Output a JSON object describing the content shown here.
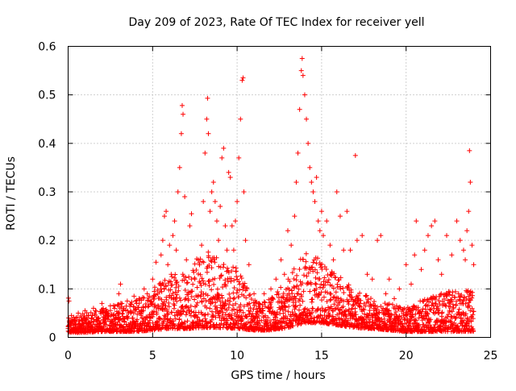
{
  "chart_data": {
    "type": "scatter",
    "title": "Day 209 of 2023, Rate Of TEC Index for receiver yell",
    "xlabel": "GPS time / hours",
    "ylabel": "ROTI / TECUs",
    "xlim": [
      0,
      25
    ],
    "ylim": [
      0,
      0.6
    ],
    "x_ticks": [
      "0",
      "5",
      "10",
      "15",
      "20",
      "25"
    ],
    "y_ticks": [
      "0",
      "0.1",
      "0.2",
      "0.3",
      "0.4",
      "0.5",
      "0.6"
    ],
    "grid": true,
    "marker": "plus",
    "color": "#ff0000",
    "series": [
      {
        "values": [
          [
            0.0,
            0.018
          ],
          [
            0.02,
            0.081
          ],
          [
            0.05,
            0.075
          ],
          [
            0.1,
            0.03
          ],
          [
            0.2,
            0.045
          ],
          [
            0.3,
            0.025
          ],
          [
            0.45,
            0.04
          ],
          [
            0.6,
            0.05
          ],
          [
            0.8,
            0.035
          ],
          [
            1.0,
            0.055
          ],
          [
            1.2,
            0.045
          ],
          [
            1.5,
            0.06
          ],
          [
            1.8,
            0.04
          ],
          [
            2.0,
            0.07
          ],
          [
            2.2,
            0.05
          ],
          [
            2.5,
            0.065
          ],
          [
            2.8,
            0.045
          ],
          [
            3.0,
            0.09
          ],
          [
            3.1,
            0.11
          ],
          [
            3.3,
            0.06
          ],
          [
            3.5,
            0.075
          ],
          [
            3.7,
            0.05
          ],
          [
            3.9,
            0.085
          ],
          [
            4.2,
            0.08
          ],
          [
            4.5,
            0.1
          ],
          [
            4.8,
            0.085
          ],
          [
            5.0,
            0.12
          ],
          [
            5.1,
            0.095
          ],
          [
            5.2,
            0.155
          ],
          [
            5.3,
            0.09
          ],
          [
            5.5,
            0.17
          ],
          [
            5.6,
            0.2
          ],
          [
            5.7,
            0.25
          ],
          [
            5.8,
            0.26
          ],
          [
            5.9,
            0.15
          ],
          [
            6.0,
            0.19
          ],
          [
            6.1,
            0.13
          ],
          [
            6.2,
            0.21
          ],
          [
            6.3,
            0.24
          ],
          [
            6.4,
            0.18
          ],
          [
            6.5,
            0.3
          ],
          [
            6.6,
            0.35
          ],
          [
            6.7,
            0.42
          ],
          [
            6.75,
            0.478
          ],
          [
            6.8,
            0.46
          ],
          [
            6.9,
            0.29
          ],
          [
            7.0,
            0.16
          ],
          [
            7.2,
            0.23
          ],
          [
            7.3,
            0.255
          ],
          [
            7.5,
            0.12
          ],
          [
            7.7,
            0.16
          ],
          [
            7.9,
            0.19
          ],
          [
            8.0,
            0.28
          ],
          [
            8.1,
            0.38
          ],
          [
            8.2,
            0.45
          ],
          [
            8.25,
            0.493
          ],
          [
            8.3,
            0.42
          ],
          [
            8.4,
            0.26
          ],
          [
            8.5,
            0.3
          ],
          [
            8.6,
            0.32
          ],
          [
            8.7,
            0.28
          ],
          [
            8.8,
            0.24
          ],
          [
            8.9,
            0.2
          ],
          [
            9.0,
            0.27
          ],
          [
            9.1,
            0.37
          ],
          [
            9.2,
            0.39
          ],
          [
            9.3,
            0.23
          ],
          [
            9.4,
            0.18
          ],
          [
            9.5,
            0.34
          ],
          [
            9.6,
            0.33
          ],
          [
            9.7,
            0.23
          ],
          [
            9.8,
            0.18
          ],
          [
            9.9,
            0.24
          ],
          [
            10.0,
            0.28
          ],
          [
            10.1,
            0.37
          ],
          [
            10.2,
            0.45
          ],
          [
            10.3,
            0.53
          ],
          [
            10.35,
            0.535
          ],
          [
            10.4,
            0.3
          ],
          [
            10.5,
            0.2
          ],
          [
            10.7,
            0.15
          ],
          [
            11.0,
            0.09
          ],
          [
            11.3,
            0.07
          ],
          [
            11.6,
            0.09
          ],
          [
            12.0,
            0.1
          ],
          [
            12.3,
            0.12
          ],
          [
            12.6,
            0.16
          ],
          [
            12.8,
            0.13
          ],
          [
            13.0,
            0.22
          ],
          [
            13.2,
            0.19
          ],
          [
            13.4,
            0.25
          ],
          [
            13.5,
            0.32
          ],
          [
            13.6,
            0.38
          ],
          [
            13.7,
            0.47
          ],
          [
            13.8,
            0.55
          ],
          [
            13.85,
            0.575
          ],
          [
            13.9,
            0.54
          ],
          [
            14.0,
            0.5
          ],
          [
            14.1,
            0.45
          ],
          [
            14.2,
            0.4
          ],
          [
            14.3,
            0.35
          ],
          [
            14.4,
            0.32
          ],
          [
            14.5,
            0.3
          ],
          [
            14.6,
            0.28
          ],
          [
            14.7,
            0.33
          ],
          [
            14.8,
            0.24
          ],
          [
            14.9,
            0.22
          ],
          [
            15.0,
            0.26
          ],
          [
            15.1,
            0.21
          ],
          [
            15.3,
            0.24
          ],
          [
            15.5,
            0.19
          ],
          [
            15.7,
            0.16
          ],
          [
            15.9,
            0.3
          ],
          [
            16.1,
            0.25
          ],
          [
            16.3,
            0.18
          ],
          [
            16.5,
            0.26
          ],
          [
            16.7,
            0.18
          ],
          [
            17.0,
            0.375
          ],
          [
            17.1,
            0.2
          ],
          [
            17.4,
            0.21
          ],
          [
            17.7,
            0.13
          ],
          [
            18.0,
            0.12
          ],
          [
            18.3,
            0.2
          ],
          [
            18.5,
            0.21
          ],
          [
            18.8,
            0.09
          ],
          [
            19.0,
            0.12
          ],
          [
            19.3,
            0.08
          ],
          [
            19.6,
            0.1
          ],
          [
            20.0,
            0.15
          ],
          [
            20.3,
            0.11
          ],
          [
            20.5,
            0.17
          ],
          [
            20.6,
            0.24
          ],
          [
            20.9,
            0.14
          ],
          [
            21.1,
            0.18
          ],
          [
            21.3,
            0.21
          ],
          [
            21.5,
            0.23
          ],
          [
            21.7,
            0.24
          ],
          [
            21.9,
            0.16
          ],
          [
            22.1,
            0.13
          ],
          [
            22.4,
            0.21
          ],
          [
            22.7,
            0.17
          ],
          [
            23.0,
            0.24
          ],
          [
            23.2,
            0.2
          ],
          [
            23.4,
            0.18
          ],
          [
            23.5,
            0.16
          ],
          [
            23.6,
            0.22
          ],
          [
            23.7,
            0.26
          ],
          [
            23.75,
            0.385
          ],
          [
            23.8,
            0.32
          ],
          [
            23.9,
            0.19
          ],
          [
            24.0,
            0.15
          ]
        ]
      }
    ],
    "baseline_band": {
      "x": [
        0,
        1,
        2,
        3,
        4,
        5,
        6,
        7,
        8,
        9,
        10,
        11,
        12,
        13,
        14,
        15,
        16,
        17,
        18,
        19,
        20,
        21,
        22,
        23,
        24
      ],
      "low": [
        0.01,
        0.01,
        0.012,
        0.012,
        0.012,
        0.015,
        0.018,
        0.018,
        0.02,
        0.02,
        0.018,
        0.015,
        0.015,
        0.02,
        0.03,
        0.03,
        0.025,
        0.02,
        0.018,
        0.015,
        0.012,
        0.012,
        0.012,
        0.012,
        0.012
      ],
      "high": [
        0.04,
        0.05,
        0.06,
        0.07,
        0.08,
        0.1,
        0.13,
        0.15,
        0.18,
        0.17,
        0.15,
        0.08,
        0.08,
        0.12,
        0.18,
        0.16,
        0.13,
        0.1,
        0.08,
        0.07,
        0.06,
        0.08,
        0.09,
        0.1,
        0.1
      ]
    }
  }
}
